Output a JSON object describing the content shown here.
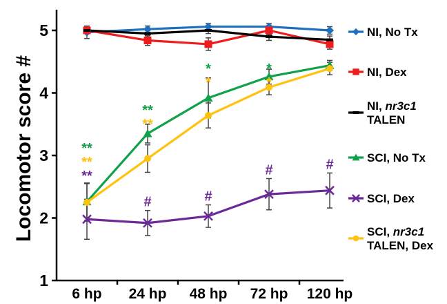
{
  "chart_data": {
    "type": "line",
    "title": "",
    "xlabel": "",
    "ylabel": "Locomotor score #",
    "categories": [
      "6 hp",
      "24 hp",
      "48 hp",
      "72 hp",
      "120 hp"
    ],
    "ylim": [
      1,
      5.3
    ],
    "yticks": [
      "1",
      "2",
      "3",
      "4",
      "5"
    ],
    "grid": false,
    "legend_position": "right",
    "series": [
      {
        "name": "NI, No Tx",
        "legend": [
          {
            "text": "NI, No Tx",
            "italic": false
          }
        ],
        "color": "#1f6fbf",
        "marker": "diamond",
        "values": [
          4.97,
          5.02,
          5.06,
          5.06,
          5.0
        ],
        "errors": [
          0.1,
          0.05,
          0.05,
          0.05,
          0.06
        ]
      },
      {
        "name": "NI, Dex",
        "legend": [
          {
            "text": "NI, Dex",
            "italic": false
          }
        ],
        "color": "#ee1c1c",
        "marker": "square",
        "values": [
          5.0,
          4.84,
          4.78,
          5.0,
          4.78
        ],
        "errors": [
          0.05,
          0.08,
          0.1,
          0.07,
          0.08
        ]
      },
      {
        "name": "NI, nr3c1 TALEN",
        "legend": [
          {
            "text": "NI, ",
            "italic": false
          },
          {
            "text": "nr3c1",
            "italic": true
          },
          {
            "text": "TALEN",
            "italic": false,
            "newline": true
          }
        ],
        "color": "#000000",
        "marker": "dash",
        "values": [
          5.0,
          4.95,
          5.0,
          4.9,
          4.85
        ],
        "errors": [
          0.05,
          0.05,
          0.05,
          0.06,
          0.06
        ]
      },
      {
        "name": "SCI, No Tx",
        "legend": [
          {
            "text": "SCI, No Tx",
            "italic": false
          }
        ],
        "color": "#12a04a",
        "marker": "triangle",
        "values": [
          2.26,
          3.35,
          3.92,
          4.26,
          4.44
        ],
        "errors": [
          0.3,
          0.15,
          0.32,
          0.12,
          0.08
        ]
      },
      {
        "name": "SCI, Dex",
        "legend": [
          {
            "text": "SCI, Dex",
            "italic": false
          }
        ],
        "color": "#6c2a96",
        "marker": "x",
        "values": [
          1.98,
          1.92,
          2.03,
          2.38,
          2.44
        ],
        "errors": [
          0.32,
          0.2,
          0.18,
          0.25,
          0.28
        ]
      },
      {
        "name": "SCI, nr3c1 TALEN, Dex",
        "legend": [
          {
            "text": "SCI, ",
            "italic": false
          },
          {
            "text": "nr3c1",
            "italic": true
          },
          {
            "text": "TALEN, Dex",
            "italic": false,
            "newline": true
          }
        ],
        "color": "#ffc20e",
        "marker": "circle",
        "values": [
          2.25,
          2.95,
          3.64,
          4.09,
          4.39
        ],
        "errors": [
          0.3,
          0.22,
          0.2,
          0.12,
          0.1
        ]
      }
    ],
    "annotations": [
      {
        "category": "6 hp",
        "lines": [
          {
            "text": "**",
            "color": "#12a04a"
          },
          {
            "text": "**",
            "color": "#ffc20e"
          },
          {
            "text": "**",
            "color": "#6c2a96"
          }
        ]
      },
      {
        "category": "24 hp",
        "lines": [
          {
            "text": "**",
            "color": "#12a04a"
          },
          {
            "text": "**",
            "color": "#ffc20e"
          }
        ]
      },
      {
        "category": "48 hp",
        "lines": [
          {
            "text": "*",
            "color": "#12a04a"
          },
          {
            "text": "*",
            "color": "#ffc20e"
          }
        ]
      },
      {
        "category": "72 hp",
        "lines": [
          {
            "text": "*",
            "color": "#12a04a"
          },
          {
            "text": "*",
            "color": "#ffc20e"
          }
        ]
      },
      {
        "category": "24 hp",
        "hash": "#",
        "color": "#6c2a96"
      },
      {
        "category": "48 hp",
        "hash": "#",
        "color": "#6c2a96"
      },
      {
        "category": "72 hp",
        "hash": "#",
        "color": "#6c2a96"
      },
      {
        "category": "120 hp",
        "hash": "#",
        "color": "#6c2a96"
      }
    ]
  }
}
